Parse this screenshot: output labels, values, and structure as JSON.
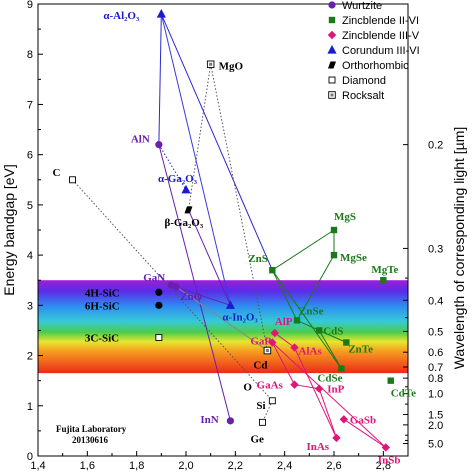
{
  "chart_data": {
    "type": "scatter",
    "title": "",
    "xlabel": "",
    "ylabel": "Energy bandgap [eV]",
    "y2label": "Wavelength of corresponding light [µm]",
    "xlim": [
      1.4,
      2.9
    ],
    "ylim": [
      0,
      9
    ],
    "x_ticks": [
      "1,4",
      "1,6",
      "1,8",
      "2,0",
      "2,2",
      "2,4",
      "2,6",
      "2,8"
    ],
    "y_ticks": [
      "0",
      "1",
      "2",
      "3",
      "4",
      "5",
      "6",
      "7",
      "8",
      "9"
    ],
    "y2_ticks": [
      "0.2",
      "0.3",
      "0.4",
      "0.5",
      "0.6",
      "0.7",
      "0.8",
      "1.0",
      "1.5",
      "2.0",
      "5.0"
    ],
    "visible_band": {
      "ymin": 1.65,
      "ymax": 3.5
    },
    "credit_lines": [
      "Fujita Laboratory",
      "20130616"
    ],
    "legend": [
      {
        "name": "Wurtzite",
        "marker": "circle",
        "color": "#6a1fb0"
      },
      {
        "name": "Zincblende II-VI",
        "marker": "square",
        "color": "#1a7a1a"
      },
      {
        "name": "Zincblende III-V",
        "marker": "diamond",
        "color": "#e0157a"
      },
      {
        "name": "Corundum III-VI",
        "marker": "triangle",
        "color": "#1a1ad0"
      },
      {
        "name": "Orthorhombic",
        "marker": "parallelogram",
        "color": "#000000"
      },
      {
        "name": "Diamond",
        "marker": "open-square",
        "color": "#000000"
      },
      {
        "name": "Rocksalt",
        "marker": "dotted-square",
        "color": "#000000"
      }
    ],
    "points": [
      {
        "label": "α-Al₂O₃",
        "x": 1.9,
        "y": 8.8,
        "group": "Corundum III-VI",
        "color": "#1a1ad0"
      },
      {
        "label": "MgO",
        "x": 2.1,
        "y": 7.8,
        "group": "Rocksalt",
        "color": "#000000"
      },
      {
        "label": "AlN",
        "x": 1.89,
        "y": 6.2,
        "group": "Wurtzite",
        "color": "#6a1fb0"
      },
      {
        "label": "C",
        "x": 1.54,
        "y": 5.5,
        "group": "Diamond",
        "color": "#000000"
      },
      {
        "label": "α-Ga₂O₃",
        "x": 2.0,
        "y": 5.3,
        "group": "Corundum III-VI",
        "color": "#1a1ad0"
      },
      {
        "label": "β-Ga₂O₃",
        "x": 2.01,
        "y": 4.9,
        "group": "Orthorhombic",
        "color": "#000000"
      },
      {
        "label": "GaN",
        "x": 1.94,
        "y": 3.4,
        "group": "Wurtzite",
        "color": "#6a1fb0"
      },
      {
        "label": "ZnO",
        "x": 1.96,
        "y": 3.37,
        "group": "Wurtzite",
        "color": "#6a1fb0"
      },
      {
        "label": "4H-SiC",
        "x": 1.89,
        "y": 3.26,
        "group": "Wurtzite",
        "color": "#000000"
      },
      {
        "label": "6H-SiC",
        "x": 1.89,
        "y": 3.0,
        "group": "Wurtzite",
        "color": "#000000"
      },
      {
        "label": "3C-SiC",
        "x": 1.89,
        "y": 2.36,
        "group": "Diamond",
        "color": "#000000"
      },
      {
        "label": "α-In₂O₃",
        "x": 2.18,
        "y": 3.0,
        "group": "Corundum III-VI",
        "color": "#1a1ad0"
      },
      {
        "label": "InN",
        "x": 2.18,
        "y": 0.7,
        "group": "Wurtzite",
        "color": "#6a1fb0"
      },
      {
        "label": "MgS",
        "x": 2.6,
        "y": 4.5,
        "group": "Zincblende II-VI",
        "color": "#1a7a1a"
      },
      {
        "label": "MgSe",
        "x": 2.6,
        "y": 4.0,
        "group": "Zincblende II-VI",
        "color": "#1a7a1a"
      },
      {
        "label": "ZnS",
        "x": 2.35,
        "y": 3.7,
        "group": "Zincblende II-VI",
        "color": "#1a7a1a"
      },
      {
        "label": "MgTe",
        "x": 2.8,
        "y": 3.5,
        "group": "Zincblende II-VI",
        "color": "#1a7a1a"
      },
      {
        "label": "ZnSe",
        "x": 2.45,
        "y": 2.7,
        "group": "Zincblende II-VI",
        "color": "#1a7a1a"
      },
      {
        "label": "CdS",
        "x": 2.54,
        "y": 2.5,
        "group": "Zincblende II-VI",
        "color": "#1a7a1a"
      },
      {
        "label": "ZnTe",
        "x": 2.65,
        "y": 2.26,
        "group": "Zincblende II-VI",
        "color": "#1a7a1a"
      },
      {
        "label": "CdSe",
        "x": 2.63,
        "y": 1.74,
        "group": "Zincblende II-VI",
        "color": "#1a7a1a"
      },
      {
        "label": "CdTe",
        "x": 2.83,
        "y": 1.5,
        "group": "Zincblende II-VI",
        "color": "#1a7a1a"
      },
      {
        "label": "AlP",
        "x": 2.36,
        "y": 2.45,
        "group": "Zincblende III-V",
        "color": "#e0157a"
      },
      {
        "label": "GaP",
        "x": 2.35,
        "y": 2.26,
        "group": "Zincblende III-V",
        "color": "#e0157a"
      },
      {
        "label": "AlAs",
        "x": 2.44,
        "y": 2.16,
        "group": "Zincblende III-V",
        "color": "#e0157a"
      },
      {
        "label": "GaAs",
        "x": 2.44,
        "y": 1.42,
        "group": "Zincblende III-V",
        "color": "#e0157a"
      },
      {
        "label": "InP",
        "x": 2.54,
        "y": 1.34,
        "group": "Zincblende III-V",
        "color": "#e0157a"
      },
      {
        "label": "GaSb",
        "x": 2.64,
        "y": 0.73,
        "group": "Zincblende III-V",
        "color": "#e0157a"
      },
      {
        "label": "InAs",
        "x": 2.61,
        "y": 0.36,
        "group": "Zincblende III-V",
        "color": "#e0157a"
      },
      {
        "label": "InSb",
        "x": 2.81,
        "y": 0.17,
        "group": "Zincblende III-V",
        "color": "#e0157a"
      },
      {
        "label": "Cd",
        "x": 2.33,
        "y": 2.1,
        "group": "Rocksalt",
        "color": "#000000"
      },
      {
        "label": "O",
        "x": 2.33,
        "y": 2.1,
        "group": "Rocksalt",
        "color": "#000000"
      },
      {
        "label": "Si",
        "x": 2.35,
        "y": 1.1,
        "group": "Diamond",
        "color": "#000000"
      },
      {
        "label": "Ge",
        "x": 2.31,
        "y": 0.67,
        "group": "Diamond",
        "color": "#000000"
      }
    ],
    "connections": [
      {
        "from": "α-Al₂O₃",
        "to": "AlN",
        "color": "#2a2ad0",
        "dash": "solid"
      },
      {
        "from": "α-Al₂O₃",
        "to": "ZnS",
        "color": "#2a2ad0",
        "dash": "solid"
      },
      {
        "from": "α-Al₂O₃",
        "to": "α-In₂O₃",
        "color": "#3a3ae0",
        "dash": "solid"
      },
      {
        "from": "MgO",
        "to": "β-Ga₂O₃",
        "color": "#555555",
        "dash": "dotted"
      },
      {
        "from": "MgO",
        "to": "Cd",
        "color": "#555555",
        "dash": "dotted"
      },
      {
        "from": "AlN",
        "to": "α-Ga₂O₃",
        "color": "#1a1ad0",
        "dash": "dotted"
      },
      {
        "from": "AlN",
        "to": "InN",
        "color": "#6a1fb0",
        "dash": "solid"
      },
      {
        "from": "GaN",
        "to": "ZnO",
        "color": "#6a1fb0",
        "dash": "solid"
      },
      {
        "from": "GaN",
        "to": "α-In₂O₃",
        "color": "#6a1fb0",
        "dash": "solid"
      },
      {
        "from": "α-In₂O₃",
        "to": "β-Ga₂O₃",
        "color": "#6a1fb0",
        "dash": "solid"
      },
      {
        "from": "ZnS",
        "to": "MgS",
        "color": "#1a7a1a",
        "dash": "solid"
      },
      {
        "from": "MgS",
        "to": "MgSe",
        "color": "#1a7a1a",
        "dash": "solid"
      },
      {
        "from": "MgSe",
        "to": "ZnSe",
        "color": "#1a7a1a",
        "dash": "solid"
      },
      {
        "from": "ZnS",
        "to": "ZnSe",
        "color": "#1a7a1a",
        "dash": "solid"
      },
      {
        "from": "ZnSe",
        "to": "ZnTe",
        "color": "#1a7a1a",
        "dash": "solid"
      },
      {
        "from": "ZnS",
        "to": "CdSe",
        "color": "#1a7a1a",
        "dash": "solid"
      },
      {
        "from": "CdS",
        "to": "CdSe",
        "color": "#1a7a1a",
        "dash": "solid"
      },
      {
        "from": "AlP",
        "to": "AlAs",
        "color": "#e0157a",
        "dash": "solid"
      },
      {
        "from": "GaP",
        "to": "GaAs",
        "color": "#e0157a",
        "dash": "solid"
      },
      {
        "from": "GaAs",
        "to": "InP",
        "color": "#e0157a",
        "dash": "solid"
      },
      {
        "from": "AlAs",
        "to": "InAs",
        "color": "#e0157a",
        "dash": "solid"
      },
      {
        "from": "InP",
        "to": "InAs",
        "color": "#e0157a",
        "dash": "solid"
      },
      {
        "from": "GaSb",
        "to": "InSb",
        "color": "#e0157a",
        "dash": "solid"
      },
      {
        "from": "GaP",
        "to": "InSb",
        "color": "#e0157a",
        "dash": "solid"
      },
      {
        "from": "ZnO",
        "to": "Cd",
        "color": "#888888",
        "dash": "solid"
      },
      {
        "from": "Si",
        "to": "Ge",
        "color": "#555555",
        "dash": "dotted"
      },
      {
        "from": "C",
        "to": "Si",
        "color": "#555555",
        "dash": "dotted"
      }
    ]
  }
}
